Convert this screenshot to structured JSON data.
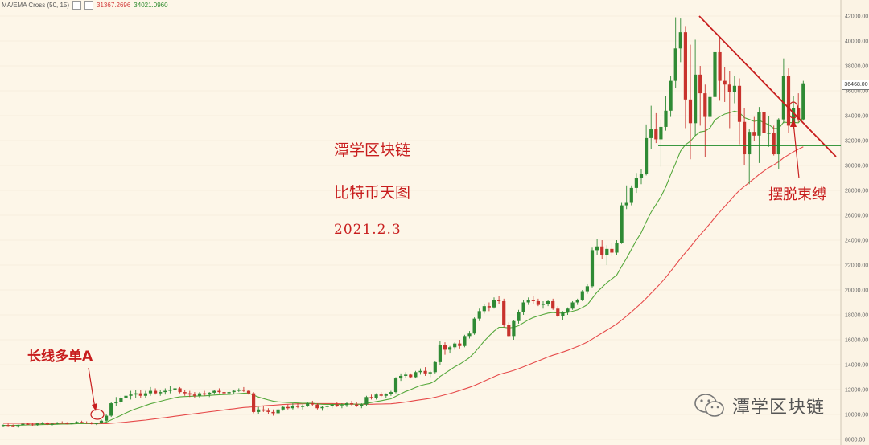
{
  "legend": {
    "indicator": "MA/EMA Cross (50, 15)",
    "ma_value": "31367.2696",
    "ema_value": "34021.0960",
    "colors": {
      "ma": "#e64a4a",
      "ema": "#56a83c"
    }
  },
  "current_price_label": "36468.00",
  "annotations": {
    "title": "潭学区块链",
    "subtitle": "比特币天图",
    "date": "2021.2.3",
    "breakout": "摆脱束缚",
    "long_entry": "长线多单A"
  },
  "watermark": {
    "text": "潭学区块链",
    "icon": "wechat-icon"
  },
  "chart_data": {
    "type": "candlestick",
    "title": "",
    "y_ticks": [
      "42000.00",
      "40000.00",
      "38000.00",
      "36000.00",
      "34000.00",
      "32000.00",
      "30000.00",
      "28000.00",
      "26000.00",
      "24000.00",
      "22000.00",
      "20000.00",
      "18000.00",
      "16000.00",
      "14000.00",
      "12000.00",
      "10000.00",
      "8000.00"
    ],
    "ylim": [
      7900,
      42700
    ],
    "current_price": 36468,
    "candles": [
      [
        9100,
        9200,
        9000,
        9150
      ],
      [
        9150,
        9250,
        9050,
        9120
      ],
      [
        9120,
        9200,
        9000,
        9080
      ],
      [
        9080,
        9180,
        8950,
        9150
      ],
      [
        9150,
        9300,
        9100,
        9250
      ],
      [
        9250,
        9350,
        9150,
        9200
      ],
      [
        9200,
        9280,
        9100,
        9150
      ],
      [
        9150,
        9300,
        9100,
        9280
      ],
      [
        9280,
        9400,
        9200,
        9300
      ],
      [
        9300,
        9380,
        9150,
        9200
      ],
      [
        9200,
        9300,
        9120,
        9250
      ],
      [
        9250,
        9400,
        9200,
        9350
      ],
      [
        9350,
        9450,
        9250,
        9300
      ],
      [
        9300,
        9380,
        9200,
        9250
      ],
      [
        9250,
        9350,
        9150,
        9300
      ],
      [
        9300,
        9450,
        9250,
        9400
      ],
      [
        9400,
        9500,
        9300,
        9350
      ],
      [
        9350,
        9450,
        9250,
        9300
      ],
      [
        9300,
        9400,
        9200,
        9250
      ],
      [
        9250,
        9350,
        9150,
        9300
      ],
      [
        9300,
        9600,
        9250,
        9500
      ],
      [
        9500,
        10000,
        9400,
        9900
      ],
      [
        9900,
        11000,
        9800,
        10900
      ],
      [
        10900,
        11400,
        10700,
        11000
      ],
      [
        11000,
        11500,
        10800,
        11300
      ],
      [
        11300,
        11700,
        11100,
        11500
      ],
      [
        11500,
        11900,
        11200,
        11600
      ],
      [
        11600,
        12000,
        11300,
        11700
      ],
      [
        11700,
        12000,
        11300,
        11500
      ],
      [
        11500,
        11900,
        11300,
        11700
      ],
      [
        11700,
        12200,
        11500,
        11900
      ],
      [
        11900,
        12100,
        11600,
        11700
      ],
      [
        11700,
        12000,
        11500,
        11800
      ],
      [
        11800,
        12100,
        11600,
        11900
      ],
      [
        11900,
        12300,
        11700,
        12000
      ],
      [
        12000,
        12400,
        11800,
        12100
      ],
      [
        12100,
        12200,
        11700,
        11800
      ],
      [
        11800,
        12000,
        11500,
        11700
      ],
      [
        11700,
        11900,
        11400,
        11600
      ],
      [
        11600,
        11800,
        11300,
        11500
      ],
      [
        11500,
        11800,
        11300,
        11700
      ],
      [
        11700,
        11900,
        11500,
        11600
      ],
      [
        11600,
        11800,
        11400,
        11750
      ],
      [
        11750,
        12000,
        11600,
        11900
      ],
      [
        11900,
        12100,
        11700,
        11800
      ],
      [
        11800,
        12000,
        11600,
        11700
      ],
      [
        11700,
        11900,
        11500,
        11800
      ],
      [
        11800,
        12000,
        11650,
        11900
      ],
      [
        11900,
        12100,
        11800,
        12000
      ],
      [
        12000,
        12200,
        11800,
        11900
      ],
      [
        11900,
        12000,
        11600,
        11700
      ],
      [
        11700,
        11800,
        10100,
        10200
      ],
      [
        10200,
        10600,
        10000,
        10400
      ],
      [
        10400,
        10700,
        10200,
        10300
      ],
      [
        10300,
        10500,
        10000,
        10200
      ],
      [
        10200,
        10400,
        9900,
        10100
      ],
      [
        10100,
        10500,
        10000,
        10400
      ],
      [
        10400,
        10700,
        10300,
        10600
      ],
      [
        10600,
        10800,
        10400,
        10500
      ],
      [
        10500,
        10900,
        10400,
        10700
      ],
      [
        10700,
        10900,
        10500,
        10600
      ],
      [
        10600,
        10800,
        10400,
        10700
      ],
      [
        10700,
        11000,
        10600,
        10900
      ],
      [
        10900,
        11100,
        10700,
        10800
      ],
      [
        10800,
        10900,
        10400,
        10500
      ],
      [
        10500,
        10700,
        10300,
        10600
      ],
      [
        10600,
        10800,
        10400,
        10700
      ],
      [
        10700,
        10900,
        10500,
        10800
      ],
      [
        10800,
        11000,
        10600,
        10700
      ],
      [
        10700,
        10900,
        10500,
        10750
      ],
      [
        10750,
        11000,
        10600,
        10900
      ],
      [
        10900,
        11100,
        10700,
        10800
      ],
      [
        10800,
        11000,
        10600,
        10700
      ],
      [
        10700,
        10900,
        10500,
        10800
      ],
      [
        10800,
        11500,
        10700,
        11400
      ],
      [
        11400,
        11600,
        11200,
        11300
      ],
      [
        11300,
        11700,
        11200,
        11600
      ],
      [
        11600,
        11800,
        11400,
        11500
      ],
      [
        11500,
        11700,
        11300,
        11650
      ],
      [
        11650,
        11900,
        11500,
        11800
      ],
      [
        11800,
        13000,
        11700,
        12900
      ],
      [
        12900,
        13300,
        12700,
        13100
      ],
      [
        13100,
        13400,
        12900,
        13200
      ],
      [
        13200,
        13300,
        12900,
        13000
      ],
      [
        13000,
        13500,
        12900,
        13400
      ],
      [
        13400,
        13700,
        13200,
        13500
      ],
      [
        13500,
        13800,
        13100,
        13300
      ],
      [
        13300,
        13500,
        13000,
        13400
      ],
      [
        13400,
        14300,
        13300,
        14200
      ],
      [
        14200,
        15900,
        14000,
        15600
      ],
      [
        15600,
        15800,
        14800,
        15200
      ],
      [
        15200,
        15500,
        14900,
        15400
      ],
      [
        15400,
        15800,
        15200,
        15700
      ],
      [
        15700,
        16000,
        15300,
        15500
      ],
      [
        15500,
        16400,
        15400,
        16300
      ],
      [
        16300,
        16700,
        16100,
        16500
      ],
      [
        16500,
        17800,
        16400,
        17700
      ],
      [
        17700,
        18500,
        17500,
        18300
      ],
      [
        18300,
        18900,
        18100,
        18700
      ],
      [
        18700,
        19000,
        18300,
        18600
      ],
      [
        18600,
        19400,
        18500,
        19200
      ],
      [
        19200,
        19500,
        18900,
        19100
      ],
      [
        19100,
        19300,
        17000,
        17200
      ],
      [
        17200,
        17400,
        16200,
        16300
      ],
      [
        16300,
        17600,
        16000,
        17500
      ],
      [
        17500,
        18400,
        17300,
        18200
      ],
      [
        18200,
        19200,
        18000,
        19000
      ],
      [
        19000,
        19400,
        18800,
        19200
      ],
      [
        19200,
        19500,
        18900,
        19100
      ],
      [
        19100,
        19300,
        18700,
        18800
      ],
      [
        18800,
        19100,
        18500,
        18900
      ],
      [
        18900,
        19200,
        18700,
        19100
      ],
      [
        19100,
        19300,
        18400,
        18500
      ],
      [
        18500,
        18700,
        17800,
        17900
      ],
      [
        17900,
        18300,
        17600,
        18200
      ],
      [
        18200,
        18600,
        18000,
        18500
      ],
      [
        18500,
        19100,
        18400,
        19000
      ],
      [
        19000,
        19300,
        18800,
        19200
      ],
      [
        19200,
        20000,
        19100,
        19900
      ],
      [
        19900,
        20500,
        19700,
        20300
      ],
      [
        20300,
        23400,
        20200,
        23200
      ],
      [
        23200,
        24100,
        22800,
        23500
      ],
      [
        23500,
        24000,
        22500,
        22800
      ],
      [
        22800,
        23600,
        22000,
        23300
      ],
      [
        23300,
        23800,
        22700,
        23000
      ],
      [
        23000,
        24000,
        22800,
        23800
      ],
      [
        23800,
        27000,
        23700,
        26800
      ],
      [
        26800,
        28400,
        26500,
        27000
      ],
      [
        27000,
        28400,
        26800,
        28200
      ],
      [
        28200,
        29400,
        27800,
        29000
      ],
      [
        29000,
        29700,
        28500,
        29300
      ],
      [
        29300,
        33300,
        29200,
        32200
      ],
      [
        32200,
        34800,
        31300,
        32900
      ],
      [
        32900,
        34200,
        31800,
        32100
      ],
      [
        32100,
        33700,
        29900,
        33100
      ],
      [
        33100,
        35600,
        32800,
        34400
      ],
      [
        34400,
        37200,
        33900,
        36800
      ],
      [
        36800,
        41900,
        36200,
        39400
      ],
      [
        39400,
        41800,
        38300,
        40700
      ],
      [
        40700,
        41200,
        33000,
        35300
      ],
      [
        35300,
        39700,
        30500,
        33400
      ],
      [
        33400,
        40100,
        32400,
        37300
      ],
      [
        37300,
        38000,
        33200,
        35800
      ],
      [
        35800,
        36500,
        30700,
        33900
      ],
      [
        33900,
        35900,
        33500,
        35500
      ],
      [
        35500,
        39600,
        34800,
        39100
      ],
      [
        39100,
        40300,
        35200,
        36800
      ],
      [
        36800,
        37900,
        35100,
        36500
      ],
      [
        36500,
        37600,
        33000,
        35900
      ],
      [
        35900,
        37200,
        35000,
        36400
      ],
      [
        36400,
        37000,
        31700,
        33500
      ],
      [
        33500,
        34600,
        30000,
        30900
      ],
      [
        30900,
        32900,
        28500,
        32700
      ],
      [
        32700,
        33900,
        32000,
        32400
      ],
      [
        32400,
        34700,
        30200,
        34300
      ],
      [
        34300,
        34600,
        32300,
        32600
      ],
      [
        32600,
        34000,
        31500,
        32600
      ],
      [
        32600,
        33200,
        30800,
        30900
      ],
      [
        30900,
        33800,
        29700,
        33700
      ],
      [
        33700,
        38600,
        33400,
        37200
      ],
      [
        37200,
        37800,
        32600,
        33200
      ],
      [
        33200,
        35600,
        32900,
        34600
      ],
      [
        34600,
        35800,
        33500,
        33700
      ],
      [
        33700,
        36800,
        33600,
        36600
      ]
    ],
    "ema_15": [
      9120,
      9130,
      9130,
      9135,
      9150,
      9160,
      9165,
      9175,
      9190,
      9195,
      9200,
      9215,
      9225,
      9230,
      9240,
      9255,
      9265,
      9270,
      9275,
      9280,
      9310,
      9380,
      9570,
      9740,
      9930,
      10120,
      10300,
      10450,
      10580,
      10720,
      10860,
      10960,
      11060,
      11160,
      11250,
      11350,
      11410,
      11440,
      11460,
      11470,
      11490,
      11500,
      11530,
      11560,
      11590,
      11600,
      11620,
      11640,
      11680,
      11710,
      11720,
      11550,
      11400,
      11280,
      11170,
      11070,
      11010,
      10990,
      10960,
      10950,
      10920,
      10900,
      10910,
      10900,
      10850,
      10820,
      10810,
      10810,
      10800,
      10800,
      10820,
      10830,
      10820,
      10820,
      10900,
      10960,
      11040,
      11100,
      11180,
      11260,
      11460,
      11660,
      11850,
      12000,
      12170,
      12320,
      12420,
      12500,
      12690,
      13050,
      13310,
      13570,
      13830,
      14040,
      14300,
      14570,
      14960,
      15430,
      15900,
      16300,
      16700,
      17000,
      17000,
      16950,
      17000,
      17130,
      17370,
      17600,
      17790,
      17910,
      18030,
      18140,
      18190,
      18150,
      18150,
      18190,
      18290,
      18400,
      18590,
      18810,
      19320,
      19840,
      20210,
      20590,
      20890,
      21200,
      21900,
      22550,
      23270,
      23990,
      24610,
      25470,
      26250,
      26860,
      27490,
      28290,
      29280,
      30180,
      31160,
      31670,
      31950,
      32400,
      32700,
      32760,
      33020,
      33660,
      33930,
      34130,
      34230,
      34370,
      34260,
      33840,
      33700,
      33540,
      33640,
      33440,
      33280,
      32980,
      32960,
      33490,
      33440,
      33460,
      33430,
      33850
    ],
    "ma_50": [
      9300,
      9300,
      9295,
      9290,
      9290,
      9285,
      9280,
      9280,
      9280,
      9275,
      9270,
      9270,
      9270,
      9265,
      9260,
      9260,
      9260,
      9260,
      9255,
      9250,
      9255,
      9265,
      9290,
      9320,
      9350,
      9390,
      9430,
      9470,
      9510,
      9550,
      9600,
      9650,
      9700,
      9750,
      9800,
      9860,
      9910,
      9960,
      10010,
      10060,
      10110,
      10160,
      10210,
      10260,
      10310,
      10360,
      10410,
      10460,
      10510,
      10560,
      10590,
      10620,
      10660,
      10690,
      10720,
      10740,
      10770,
      10800,
      10820,
      10840,
      10850,
      10860,
      10870,
      10880,
      10880,
      10880,
      10880,
      10880,
      10870,
      10860,
      10850,
      10840,
      10830,
      10820,
      10820,
      10820,
      10830,
      10840,
      10850,
      10860,
      10900,
      10950,
      11000,
      11060,
      11120,
      11180,
      11240,
      11300,
      11380,
      11480,
      11580,
      11680,
      11800,
      11920,
      12050,
      12180,
      12330,
      12500,
      12680,
      12850,
      13030,
      13200,
      13320,
      13420,
      13540,
      13680,
      13830,
      13990,
      14150,
      14300,
      14460,
      14620,
      14760,
      14880,
      15010,
      15150,
      15300,
      15460,
      15630,
      15810,
      16050,
      16300,
      16540,
      16780,
      17020,
      17270,
      17580,
      17900,
      18240,
      18590,
      18940,
      19330,
      19740,
      20140,
      20560,
      21010,
      21510,
      22010,
      22520,
      23000,
      23450,
      23960,
      24430,
      24870,
      25330,
      25820,
      26270,
      26710,
      27150,
      27600,
      28000,
      28320,
      28640,
      28950,
      29280,
      29560,
      29830,
      30050,
      30300,
      30620,
      30860,
      31100,
      31300,
      31500
    ]
  }
}
